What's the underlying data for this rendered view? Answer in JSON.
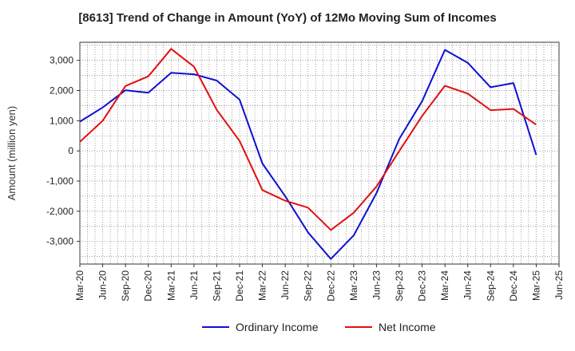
{
  "chart_data": {
    "type": "line",
    "title": "[8613]  Trend of Change in Amount (YoY) of 12Mo Moving Sum of Incomes",
    "xlabel": "",
    "ylabel": "Amount (million yen)",
    "categories": [
      "Mar-20",
      "Jun-20",
      "Sep-20",
      "Dec-20",
      "Mar-21",
      "Jun-21",
      "Sep-21",
      "Dec-21",
      "Mar-22",
      "Jun-22",
      "Sep-22",
      "Dec-22",
      "Mar-23",
      "Jun-23",
      "Sep-23",
      "Dec-23",
      "Mar-24",
      "Jun-24",
      "Sep-24",
      "Dec-24",
      "Mar-25",
      "Jun-25"
    ],
    "yticks": [
      -3000,
      -2000,
      -1000,
      0,
      1000,
      2000,
      3000
    ],
    "ytick_labels": [
      "-3,000",
      "-2,000",
      "-1,000",
      "0",
      "1,000",
      "2,000",
      "3,000"
    ],
    "ylim": [
      -3750,
      3600
    ],
    "grid": true,
    "legend_position": "bottom",
    "series": [
      {
        "name": "Ordinary Income",
        "color": "#1010d0",
        "values": [
          970,
          1440,
          2010,
          1930,
          2590,
          2540,
          2330,
          1700,
          -420,
          -1500,
          -2700,
          -3580,
          -2800,
          -1400,
          400,
          1650,
          3350,
          2920,
          2110,
          2250,
          -130,
          null
        ]
      },
      {
        "name": "Net Income",
        "color": "#e01010",
        "values": [
          300,
          1000,
          2150,
          2470,
          3380,
          2790,
          1360,
          330,
          -1300,
          -1650,
          -1880,
          -2620,
          -2050,
          -1180,
          0,
          1160,
          2160,
          1900,
          1350,
          1390,
          870,
          null
        ]
      }
    ]
  }
}
